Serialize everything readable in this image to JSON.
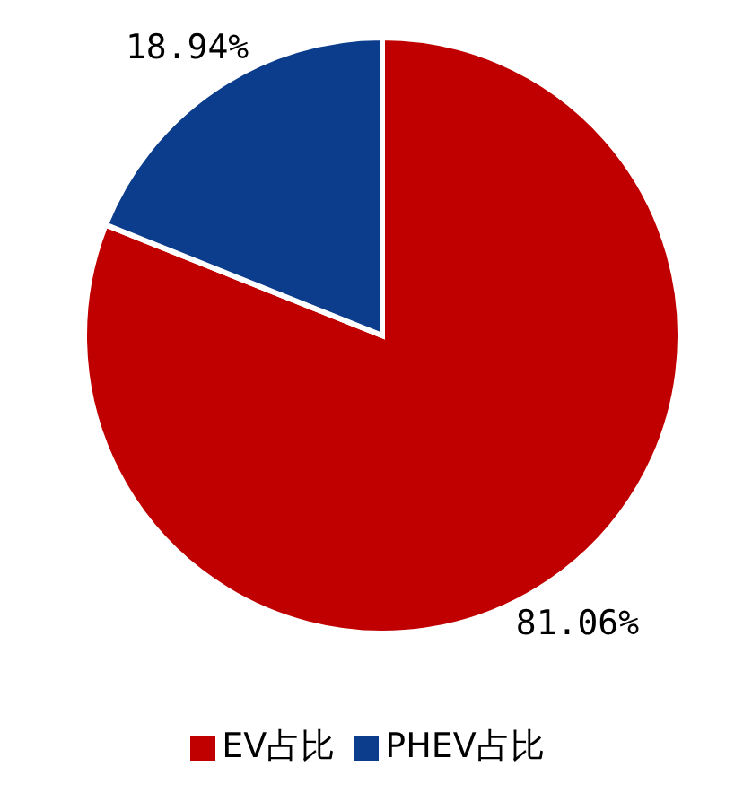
{
  "chart_data": {
    "type": "pie",
    "categories": [
      "EV占比",
      "PHEV占比"
    ],
    "values": [
      81.06,
      18.94
    ],
    "colors": [
      "#c00000",
      "#0b3d8c"
    ],
    "value_labels": [
      "81.06%",
      "18.94%"
    ],
    "legend": "bottom"
  }
}
